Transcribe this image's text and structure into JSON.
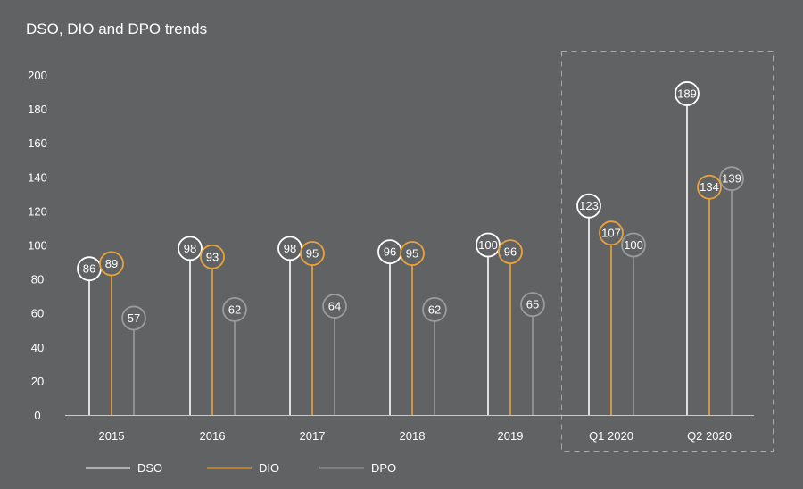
{
  "chart_data": {
    "type": "lollipop",
    "title": "DSO, DIO and DPO trends",
    "xlabel": "",
    "ylabel": "",
    "ylim": [
      0,
      200
    ],
    "yticks": [
      0,
      20,
      40,
      60,
      80,
      100,
      120,
      140,
      160,
      180,
      200
    ],
    "grid": false,
    "categories": [
      "2015",
      "2016",
      "2017",
      "2018",
      "2019",
      "Q1 2020",
      "Q2 2020"
    ],
    "highlight": {
      "categories": [
        "Q1 2020",
        "Q2 2020"
      ],
      "style": "dashed-box"
    },
    "legend_position": "bottom-left",
    "series": [
      {
        "name": "DSO",
        "color": "#ffffff",
        "values": [
          86,
          98,
          98,
          96,
          100,
          123,
          189
        ]
      },
      {
        "name": "DIO",
        "color": "#e8a33d",
        "values": [
          89,
          93,
          95,
          95,
          96,
          107,
          134
        ]
      },
      {
        "name": "DPO",
        "color": "#9a9b9c",
        "values": [
          57,
          62,
          64,
          62,
          65,
          100,
          139
        ]
      }
    ]
  }
}
